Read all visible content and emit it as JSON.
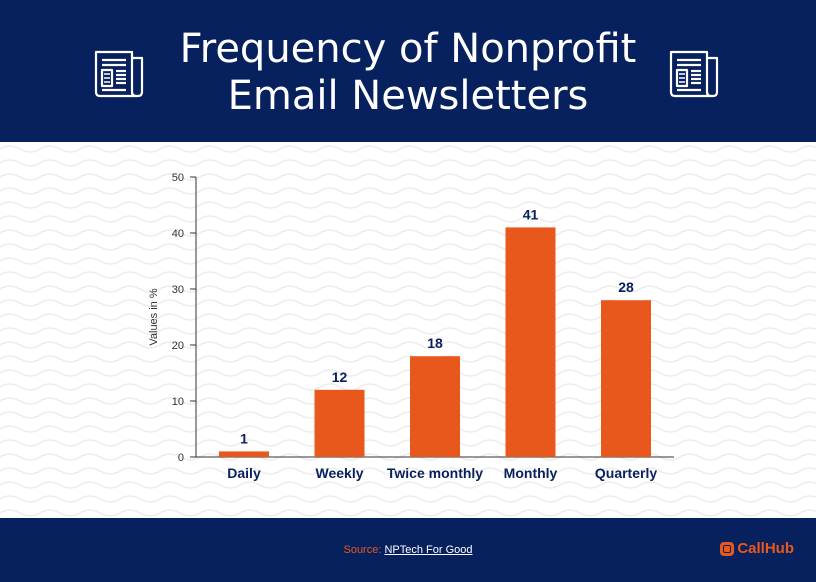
{
  "header": {
    "title_line1": "Frequency of Nonprofit",
    "title_line2": "Email Newsletters",
    "icon": "newspaper-icon"
  },
  "chart_data": {
    "type": "bar",
    "categories": [
      "Daily",
      "Weekly",
      "Twice monthly",
      "Monthly",
      "Quarterly"
    ],
    "values": [
      1,
      12,
      18,
      41,
      28
    ],
    "ylabel": "Values in %",
    "xlabel": "",
    "ylim": [
      0,
      50
    ],
    "yticks": [
      0,
      10,
      20,
      30,
      40,
      50
    ],
    "grid": false,
    "bar_color": "#e8581d",
    "label_color": "#07205e"
  },
  "footer": {
    "source_prefix": "Source: ",
    "source_link": "NPTech For Good",
    "brand": "CallHub",
    "brand_icon": "callhub-logo-icon"
  },
  "colors": {
    "navy": "#07205e",
    "orange": "#e8581d"
  }
}
